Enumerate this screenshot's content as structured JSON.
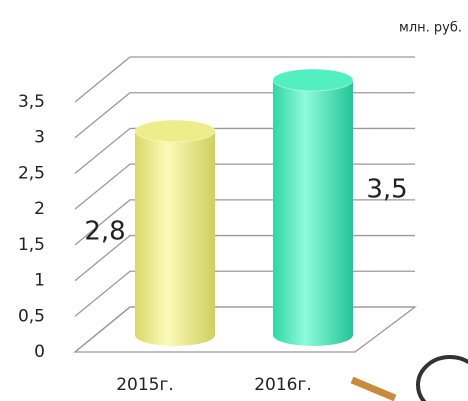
{
  "chart_data": {
    "type": "bar",
    "unit_label": "млн. руб.",
    "categories": [
      "2015г.",
      "2016г."
    ],
    "values": [
      2.8,
      3.5
    ],
    "value_labels": [
      "2,8",
      "3,5"
    ],
    "colors": [
      "#eeed8c",
      "#52efc0"
    ],
    "ylim": [
      0,
      3.5
    ],
    "yticks": [
      0,
      {
        "value": 0.5,
        "label": "0,5"
      },
      1,
      {
        "value": 1.5,
        "label": "1,5"
      },
      2,
      {
        "value": 2.5,
        "label": "2,5"
      },
      3,
      {
        "value": 3.5,
        "label": "3,5"
      }
    ],
    "grid": true
  }
}
